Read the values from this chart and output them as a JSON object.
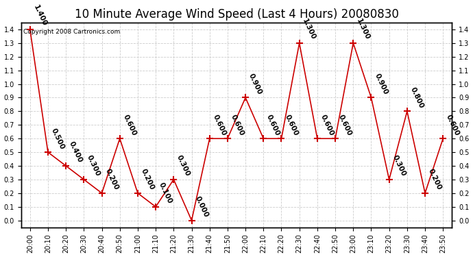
{
  "title": "10 Minute Average Wind Speed (Last 4 Hours) 20080830",
  "copyright": "Copyright 2008 Cartronics.com",
  "x_labels": [
    "20:00",
    "20:10",
    "20:20",
    "20:30",
    "20:40",
    "20:50",
    "21:00",
    "21:10",
    "21:20",
    "21:30",
    "21:40",
    "21:50",
    "22:00",
    "22:10",
    "22:20",
    "22:30",
    "22:40",
    "22:50",
    "23:00",
    "23:10",
    "23:20",
    "23:30",
    "23:40",
    "23:50"
  ],
  "y_values": [
    1.4,
    0.5,
    0.4,
    0.3,
    0.2,
    0.6,
    0.2,
    0.1,
    0.3,
    0.0,
    0.6,
    0.6,
    0.9,
    0.6,
    0.6,
    1.3,
    0.6,
    0.6,
    1.3,
    0.9,
    0.3,
    0.8,
    0.2,
    0.6
  ],
  "line_color": "#cc0000",
  "marker_color": "#cc0000",
  "background_color": "#ffffff",
  "grid_color": "#cccccc",
  "ylim_min": 0.0,
  "ylim_max": 1.4,
  "yticks": [
    0.0,
    0.1,
    0.2,
    0.3,
    0.4,
    0.5,
    0.6,
    0.7,
    0.8,
    0.9,
    1.0,
    1.1,
    1.2,
    1.3,
    1.4
  ],
  "label_fontsize": 7,
  "annotation_fontsize": 7.5,
  "title_fontsize": 12,
  "copyright_fontsize": 6.5
}
